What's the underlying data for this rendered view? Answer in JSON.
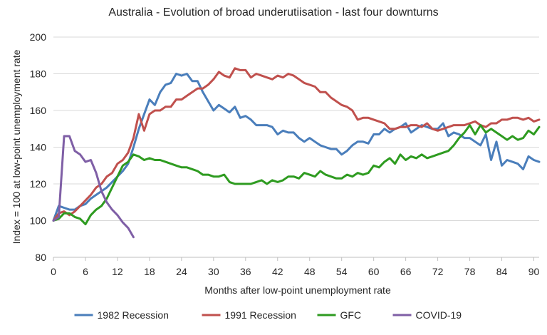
{
  "chart_data": {
    "type": "line",
    "title": "Australia - Evolution of broad underutiisation - last four downturns",
    "xlabel": "Months after low-point unemployment rate",
    "ylabel": "Index = 100 at low-point unemployment rate",
    "xlim": [
      0,
      91
    ],
    "ylim": [
      80,
      200
    ],
    "xticks": [
      0,
      6,
      12,
      18,
      24,
      30,
      36,
      42,
      48,
      54,
      60,
      66,
      72,
      78,
      84,
      90
    ],
    "yticks": [
      80,
      100,
      120,
      140,
      160,
      180,
      200
    ],
    "grid": "horizontal",
    "legend": "bottom",
    "series": [
      {
        "name": "1982 Recession",
        "color": "#4a7ebb",
        "points": [
          [
            0,
            100
          ],
          [
            1,
            108
          ],
          [
            2,
            107
          ],
          [
            3,
            106
          ],
          [
            4,
            106
          ],
          [
            5,
            108
          ],
          [
            6,
            109
          ],
          [
            7,
            112
          ],
          [
            8,
            114
          ],
          [
            9,
            116
          ],
          [
            10,
            118
          ],
          [
            11,
            121
          ],
          [
            12,
            124
          ],
          [
            13,
            127
          ],
          [
            14,
            131
          ],
          [
            15,
            140
          ],
          [
            16,
            150
          ],
          [
            17,
            158
          ],
          [
            18,
            166
          ],
          [
            19,
            163
          ],
          [
            20,
            170
          ],
          [
            21,
            174
          ],
          [
            22,
            175
          ],
          [
            23,
            180
          ],
          [
            24,
            179
          ],
          [
            25,
            180
          ],
          [
            26,
            176
          ],
          [
            27,
            176
          ],
          [
            28,
            170
          ],
          [
            29,
            165
          ],
          [
            30,
            160
          ],
          [
            31,
            163
          ],
          [
            32,
            161
          ],
          [
            33,
            159
          ],
          [
            34,
            162
          ],
          [
            35,
            156
          ],
          [
            36,
            157
          ],
          [
            37,
            155
          ],
          [
            38,
            152
          ],
          [
            39,
            152
          ],
          [
            40,
            152
          ],
          [
            41,
            151
          ],
          [
            42,
            147
          ],
          [
            43,
            149
          ],
          [
            44,
            148
          ],
          [
            45,
            148
          ],
          [
            46,
            145
          ],
          [
            47,
            143
          ],
          [
            48,
            145
          ],
          [
            49,
            143
          ],
          [
            50,
            141
          ],
          [
            51,
            140
          ],
          [
            52,
            139
          ],
          [
            53,
            139
          ],
          [
            54,
            136
          ],
          [
            55,
            138
          ],
          [
            56,
            141
          ],
          [
            57,
            143
          ],
          [
            58,
            143
          ],
          [
            59,
            142
          ],
          [
            60,
            147
          ],
          [
            61,
            147
          ],
          [
            62,
            150
          ],
          [
            63,
            148
          ],
          [
            64,
            150
          ],
          [
            65,
            151
          ],
          [
            66,
            153
          ],
          [
            67,
            148
          ],
          [
            68,
            150
          ],
          [
            69,
            152
          ],
          [
            70,
            151
          ],
          [
            71,
            150
          ],
          [
            72,
            150
          ],
          [
            73,
            153
          ],
          [
            74,
            146
          ],
          [
            75,
            148
          ],
          [
            76,
            147
          ],
          [
            77,
            145
          ],
          [
            78,
            145
          ],
          [
            79,
            143
          ],
          [
            80,
            141
          ],
          [
            81,
            147
          ],
          [
            82,
            133
          ],
          [
            83,
            143
          ],
          [
            84,
            130
          ],
          [
            85,
            133
          ],
          [
            86,
            132
          ],
          [
            87,
            131
          ],
          [
            88,
            128
          ],
          [
            89,
            135
          ],
          [
            90,
            133
          ],
          [
            91,
            132
          ]
        ]
      },
      {
        "name": "1991 Recession",
        "color": "#c0504d",
        "points": [
          [
            0,
            100
          ],
          [
            1,
            104
          ],
          [
            2,
            105
          ],
          [
            3,
            103
          ],
          [
            4,
            105
          ],
          [
            5,
            108
          ],
          [
            6,
            111
          ],
          [
            7,
            114
          ],
          [
            8,
            118
          ],
          [
            9,
            120
          ],
          [
            10,
            124
          ],
          [
            11,
            126
          ],
          [
            12,
            131
          ],
          [
            13,
            133
          ],
          [
            14,
            137
          ],
          [
            15,
            145
          ],
          [
            16,
            158
          ],
          [
            17,
            149
          ],
          [
            18,
            158
          ],
          [
            19,
            160
          ],
          [
            20,
            160
          ],
          [
            21,
            162
          ],
          [
            22,
            162
          ],
          [
            23,
            166
          ],
          [
            24,
            166
          ],
          [
            25,
            168
          ],
          [
            26,
            170
          ],
          [
            27,
            172
          ],
          [
            28,
            172
          ],
          [
            29,
            174
          ],
          [
            30,
            177
          ],
          [
            31,
            181
          ],
          [
            32,
            179
          ],
          [
            33,
            178
          ],
          [
            34,
            183
          ],
          [
            35,
            182
          ],
          [
            36,
            182
          ],
          [
            37,
            178
          ],
          [
            38,
            180
          ],
          [
            39,
            179
          ],
          [
            40,
            178
          ],
          [
            41,
            177
          ],
          [
            42,
            179
          ],
          [
            43,
            178
          ],
          [
            44,
            180
          ],
          [
            45,
            179
          ],
          [
            46,
            177
          ],
          [
            47,
            175
          ],
          [
            48,
            174
          ],
          [
            49,
            173
          ],
          [
            50,
            170
          ],
          [
            51,
            170
          ],
          [
            52,
            167
          ],
          [
            53,
            165
          ],
          [
            54,
            163
          ],
          [
            55,
            162
          ],
          [
            56,
            160
          ],
          [
            57,
            155
          ],
          [
            58,
            156
          ],
          [
            59,
            156
          ],
          [
            60,
            155
          ],
          [
            61,
            154
          ],
          [
            62,
            153
          ],
          [
            63,
            150
          ],
          [
            64,
            150
          ],
          [
            65,
            151
          ],
          [
            66,
            151
          ],
          [
            67,
            152
          ],
          [
            68,
            152
          ],
          [
            69,
            151
          ],
          [
            70,
            153
          ],
          [
            71,
            150
          ],
          [
            72,
            149
          ],
          [
            73,
            150
          ],
          [
            74,
            151
          ],
          [
            75,
            152
          ],
          [
            76,
            152
          ],
          [
            77,
            152
          ],
          [
            78,
            153
          ],
          [
            79,
            154
          ],
          [
            80,
            152
          ],
          [
            81,
            151
          ],
          [
            82,
            153
          ],
          [
            83,
            153
          ],
          [
            84,
            155
          ],
          [
            85,
            155
          ],
          [
            86,
            156
          ],
          [
            87,
            156
          ],
          [
            88,
            155
          ],
          [
            89,
            156
          ],
          [
            90,
            154
          ],
          [
            91,
            155
          ]
        ]
      },
      {
        "name": "GFC",
        "color": "#2e9b20",
        "points": [
          [
            0,
            100
          ],
          [
            1,
            101
          ],
          [
            2,
            104
          ],
          [
            3,
            104
          ],
          [
            4,
            102
          ],
          [
            5,
            101
          ],
          [
            6,
            98
          ],
          [
            7,
            103
          ],
          [
            8,
            106
          ],
          [
            9,
            108
          ],
          [
            10,
            112
          ],
          [
            11,
            118
          ],
          [
            12,
            124
          ],
          [
            13,
            130
          ],
          [
            14,
            132
          ],
          [
            15,
            136
          ],
          [
            16,
            135
          ],
          [
            17,
            133
          ],
          [
            18,
            134
          ],
          [
            19,
            133
          ],
          [
            20,
            133
          ],
          [
            21,
            132
          ],
          [
            22,
            131
          ],
          [
            23,
            130
          ],
          [
            24,
            129
          ],
          [
            25,
            129
          ],
          [
            26,
            128
          ],
          [
            27,
            127
          ],
          [
            28,
            125
          ],
          [
            29,
            125
          ],
          [
            30,
            124
          ],
          [
            31,
            124
          ],
          [
            32,
            125
          ],
          [
            33,
            121
          ],
          [
            34,
            120
          ],
          [
            35,
            120
          ],
          [
            36,
            120
          ],
          [
            37,
            120
          ],
          [
            38,
            121
          ],
          [
            39,
            122
          ],
          [
            40,
            120
          ],
          [
            41,
            122
          ],
          [
            42,
            121
          ],
          [
            43,
            122
          ],
          [
            44,
            124
          ],
          [
            45,
            124
          ],
          [
            46,
            123
          ],
          [
            47,
            126
          ],
          [
            48,
            125
          ],
          [
            49,
            124
          ],
          [
            50,
            127
          ],
          [
            51,
            125
          ],
          [
            52,
            124
          ],
          [
            53,
            123
          ],
          [
            54,
            123
          ],
          [
            55,
            125
          ],
          [
            56,
            124
          ],
          [
            57,
            126
          ],
          [
            58,
            125
          ],
          [
            59,
            126
          ],
          [
            60,
            130
          ],
          [
            61,
            129
          ],
          [
            62,
            132
          ],
          [
            63,
            134
          ],
          [
            64,
            131
          ],
          [
            65,
            136
          ],
          [
            66,
            133
          ],
          [
            67,
            135
          ],
          [
            68,
            134
          ],
          [
            69,
            136
          ],
          [
            70,
            134
          ],
          [
            71,
            135
          ],
          [
            72,
            136
          ],
          [
            73,
            137
          ],
          [
            74,
            138
          ],
          [
            75,
            141
          ],
          [
            76,
            145
          ],
          [
            77,
            148
          ],
          [
            78,
            152
          ],
          [
            79,
            147
          ],
          [
            80,
            152
          ],
          [
            81,
            148
          ],
          [
            82,
            150
          ],
          [
            83,
            148
          ],
          [
            84,
            146
          ],
          [
            85,
            144
          ],
          [
            86,
            146
          ],
          [
            87,
            144
          ],
          [
            88,
            145
          ],
          [
            89,
            149
          ],
          [
            90,
            147
          ],
          [
            91,
            151
          ]
        ]
      },
      {
        "name": "COVID-19",
        "color": "#7f5fa6",
        "points": [
          [
            0,
            100
          ],
          [
            1,
            102
          ],
          [
            2,
            146
          ],
          [
            3,
            146
          ],
          [
            4,
            138
          ],
          [
            5,
            136
          ],
          [
            6,
            132
          ],
          [
            7,
            133
          ],
          [
            8,
            126
          ],
          [
            9,
            116
          ],
          [
            10,
            110
          ],
          [
            11,
            106
          ],
          [
            12,
            103
          ],
          [
            13,
            99
          ],
          [
            14,
            96
          ],
          [
            15,
            91
          ]
        ]
      }
    ]
  }
}
